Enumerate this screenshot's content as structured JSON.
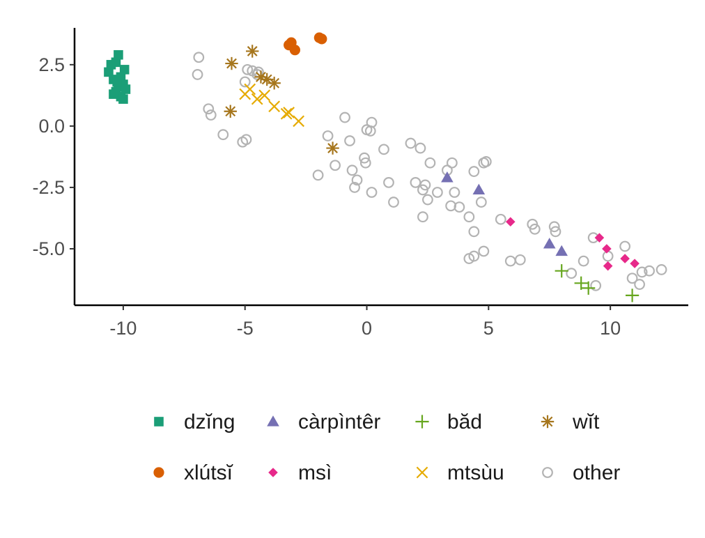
{
  "chart_data": {
    "type": "scatter",
    "xlim": [
      -12,
      13.2
    ],
    "ylim": [
      -7.3,
      4.0
    ],
    "x_ticks": [
      -10,
      -5,
      0,
      5,
      10
    ],
    "x_tick_labels": [
      "-10",
      "-5",
      "0",
      "5",
      "10"
    ],
    "y_ticks": [
      -5.0,
      -2.5,
      0.0,
      2.5
    ],
    "y_tick_labels": [
      "-5.0",
      "-2.5",
      "0.0",
      "2.5"
    ],
    "grid": false,
    "legend_position": "bottom",
    "series": [
      {
        "name": "dzĭng",
        "shape": "square",
        "color": "#1b9e77",
        "points": [
          [
            -10.6,
            2.2
          ],
          [
            -10.5,
            2.5
          ],
          [
            -10.4,
            1.9
          ],
          [
            -10.4,
            1.3
          ],
          [
            -10.3,
            2.6
          ],
          [
            -10.2,
            2.9
          ],
          [
            -10.2,
            1.6
          ],
          [
            -10.1,
            2.0
          ],
          [
            -10.1,
            1.2
          ],
          [
            -10.0,
            1.7
          ],
          [
            -9.95,
            2.3
          ],
          [
            -10.3,
            1.4
          ],
          [
            -9.9,
            1.5
          ],
          [
            -10.0,
            1.1
          ],
          [
            -10.25,
            1.8
          ]
        ]
      },
      {
        "name": "xlútsĭ",
        "shape": "circle",
        "color": "#d95f02",
        "points": [
          [
            -3.2,
            3.3
          ],
          [
            -3.1,
            3.4
          ],
          [
            -2.95,
            3.1
          ],
          [
            -1.95,
            3.6
          ],
          [
            -1.85,
            3.55
          ]
        ]
      },
      {
        "name": "càrpìntêr",
        "shape": "triangle",
        "color": "#7570b3",
        "points": [
          [
            3.3,
            -2.1
          ],
          [
            4.6,
            -2.6
          ],
          [
            7.5,
            -4.8
          ],
          [
            8.0,
            -5.1
          ]
        ]
      },
      {
        "name": "msì",
        "shape": "diamond",
        "color": "#e7298a",
        "points": [
          [
            5.9,
            -3.9
          ],
          [
            9.55,
            -4.55
          ],
          [
            9.85,
            -5.0
          ],
          [
            9.9,
            -5.7
          ],
          [
            10.6,
            -5.4
          ],
          [
            11.0,
            -5.6
          ]
        ]
      },
      {
        "name": "băd",
        "shape": "plus",
        "color": "#66a61e",
        "points": [
          [
            8.0,
            -5.9
          ],
          [
            8.8,
            -6.4
          ],
          [
            9.1,
            -6.6
          ],
          [
            10.9,
            -6.9
          ]
        ]
      },
      {
        "name": "mtsùu",
        "shape": "x",
        "color": "#e6ab02",
        "points": [
          [
            -5.0,
            1.3
          ],
          [
            -4.8,
            1.5
          ],
          [
            -4.5,
            1.1
          ],
          [
            -4.2,
            1.25
          ],
          [
            -3.8,
            0.8
          ],
          [
            -3.3,
            0.5
          ],
          [
            -3.2,
            0.55
          ],
          [
            -2.8,
            0.2
          ]
        ]
      },
      {
        "name": "wĭt",
        "shape": "asterisk",
        "color": "#a6761d",
        "points": [
          [
            -5.55,
            2.55
          ],
          [
            -4.7,
            3.05
          ],
          [
            -4.35,
            2.0
          ],
          [
            -4.1,
            1.9
          ],
          [
            -3.8,
            1.75
          ],
          [
            -5.6,
            0.6
          ],
          [
            -1.4,
            -0.9
          ]
        ]
      },
      {
        "name": "other",
        "shape": "open-circle",
        "color": "#b3b3b3",
        "points": [
          [
            -6.9,
            2.8
          ],
          [
            -6.95,
            2.1
          ],
          [
            -6.5,
            0.7
          ],
          [
            -6.4,
            0.45
          ],
          [
            -5.9,
            -0.35
          ],
          [
            -5.1,
            -0.65
          ],
          [
            -4.95,
            -0.55
          ],
          [
            -5.0,
            1.8
          ],
          [
            -4.9,
            2.3
          ],
          [
            -4.7,
            2.25
          ],
          [
            -4.5,
            2.1
          ],
          [
            -4.45,
            2.2
          ],
          [
            -1.6,
            -0.4
          ],
          [
            -1.3,
            -1.6
          ],
          [
            -0.9,
            0.35
          ],
          [
            -0.7,
            -0.6
          ],
          [
            -0.6,
            -1.8
          ],
          [
            -0.5,
            -2.5
          ],
          [
            -0.4,
            -2.2
          ],
          [
            -2.0,
            -2.0
          ],
          [
            -0.1,
            -1.3
          ],
          [
            -0.05,
            -1.5
          ],
          [
            0.0,
            -0.15
          ],
          [
            0.15,
            -0.2
          ],
          [
            0.2,
            0.15
          ],
          [
            0.2,
            -2.7
          ],
          [
            0.7,
            -0.95
          ],
          [
            0.9,
            -2.3
          ],
          [
            1.1,
            -3.1
          ],
          [
            1.8,
            -0.7
          ],
          [
            2.2,
            -0.9
          ],
          [
            2.0,
            -2.3
          ],
          [
            2.3,
            -2.6
          ],
          [
            2.4,
            -2.4
          ],
          [
            2.5,
            -3.0
          ],
          [
            2.6,
            -1.5
          ],
          [
            2.9,
            -2.7
          ],
          [
            2.3,
            -3.7
          ],
          [
            3.3,
            -1.8
          ],
          [
            3.5,
            -1.5
          ],
          [
            3.45,
            -3.25
          ],
          [
            3.6,
            -2.7
          ],
          [
            3.8,
            -3.3
          ],
          [
            4.2,
            -3.7
          ],
          [
            4.4,
            -1.85
          ],
          [
            4.4,
            -4.3
          ],
          [
            4.4,
            -5.3
          ],
          [
            4.8,
            -1.5
          ],
          [
            4.9,
            -1.45
          ],
          [
            4.7,
            -3.1
          ],
          [
            4.2,
            -5.4
          ],
          [
            4.8,
            -5.1
          ],
          [
            5.5,
            -3.8
          ],
          [
            5.9,
            -5.5
          ],
          [
            6.3,
            -5.45
          ],
          [
            6.8,
            -4.0
          ],
          [
            6.9,
            -4.2
          ],
          [
            7.7,
            -4.1
          ],
          [
            7.75,
            -4.3
          ],
          [
            8.4,
            -6.0
          ],
          [
            8.9,
            -5.5
          ],
          [
            9.3,
            -4.55
          ],
          [
            9.9,
            -5.3
          ],
          [
            9.4,
            -6.5
          ],
          [
            10.6,
            -4.9
          ],
          [
            10.9,
            -6.2
          ],
          [
            11.2,
            -6.45
          ],
          [
            11.3,
            -5.95
          ],
          [
            11.6,
            -5.9
          ],
          [
            12.1,
            -5.85
          ]
        ]
      }
    ]
  }
}
